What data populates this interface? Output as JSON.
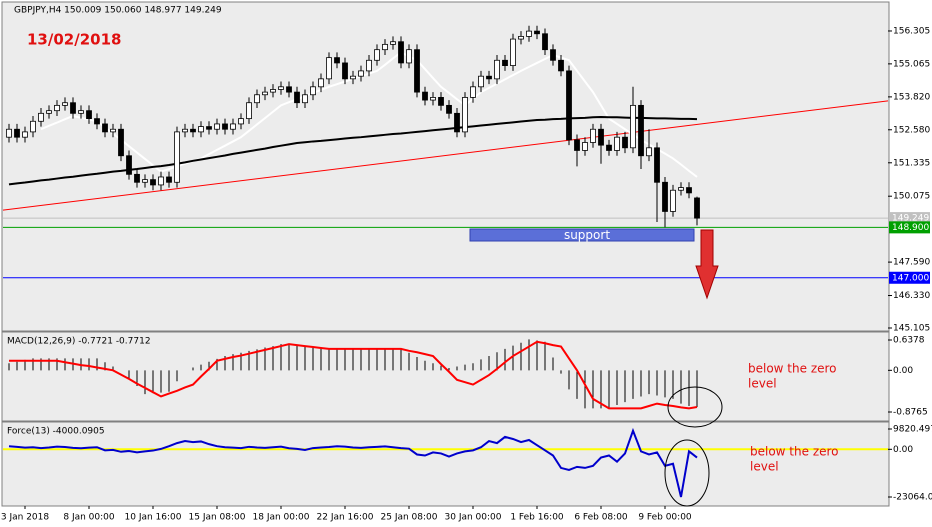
{
  "chart_data": [
    {
      "type": "candlestick",
      "title": "GBPJPY,H4  150.009 150.060 148.977 149.249",
      "annotation": "13/02/2018",
      "support_label": "support",
      "categories": [
        null,
        null,
        "3 Jan 2018",
        null,
        null,
        null,
        null,
        null,
        null,
        null,
        "8 Jan 00:00",
        null,
        null,
        null,
        null,
        null,
        null,
        null,
        "10 Jan 16:00",
        null,
        null,
        null,
        null,
        null,
        null,
        null,
        "15 Jan 08:00",
        null,
        null,
        null,
        null,
        null,
        null,
        null,
        "18 Jan 00:00",
        null,
        null,
        null,
        null,
        null,
        null,
        null,
        "22 Jan 16:00",
        null,
        null,
        null,
        null,
        null,
        null,
        null,
        "25 Jan 08:00",
        null,
        null,
        null,
        null,
        null,
        null,
        null,
        "30 Jan 00:00",
        null,
        null,
        null,
        null,
        null,
        null,
        null,
        "1 Feb 16:00",
        null,
        null,
        null,
        null,
        null,
        null,
        null,
        "6 Feb 08:00",
        null,
        null,
        null,
        null,
        null,
        null,
        null,
        "9 Feb 00:00",
        null,
        null,
        null,
        null
      ],
      "open": [
        152.3,
        152.6,
        152.3,
        152.5,
        152.9,
        153.2,
        153.3,
        153.5,
        153.6,
        153.2,
        153.3,
        153.0,
        152.8,
        152.5,
        152.6,
        151.6,
        150.9,
        150.6,
        150.7,
        150.5,
        150.8,
        150.6,
        152.5,
        152.6,
        152.5,
        152.7,
        152.6,
        152.8,
        152.6,
        152.8,
        153.0,
        153.6,
        153.9,
        154.0,
        154.1,
        154.2,
        154.0,
        153.6,
        153.9,
        154.2,
        154.5,
        155.3,
        155.1,
        154.5,
        154.6,
        154.8,
        155.2,
        155.6,
        155.8,
        155.9,
        155.1,
        155.6,
        154.0,
        153.7,
        153.8,
        153.5,
        153.2,
        152.5,
        153.8,
        154.2,
        154.6,
        154.5,
        155.2,
        155.0,
        156.0,
        156.1,
        156.3,
        156.2,
        155.6,
        155.2,
        154.8,
        152.2,
        151.8,
        152.1,
        152.6,
        152.0,
        151.8,
        152.3,
        151.9,
        153.5,
        151.6,
        151.9,
        150.6,
        149.5,
        150.3,
        150.4,
        150.009
      ],
      "high": [
        152.8,
        152.8,
        152.7,
        153.1,
        153.4,
        153.5,
        153.7,
        153.8,
        153.8,
        153.5,
        153.5,
        153.2,
        153.0,
        152.8,
        152.8,
        151.8,
        151.1,
        150.9,
        150.9,
        151.0,
        151.0,
        152.7,
        152.8,
        152.8,
        152.9,
        152.9,
        153.0,
        153.0,
        153.0,
        153.2,
        153.8,
        154.1,
        154.2,
        154.3,
        154.4,
        154.4,
        154.2,
        154.1,
        154.4,
        154.7,
        155.5,
        155.5,
        155.3,
        154.8,
        155.0,
        155.4,
        155.8,
        156.0,
        156.1,
        156.1,
        155.8,
        155.8,
        154.2,
        154.0,
        154.0,
        153.7,
        153.4,
        154.0,
        154.4,
        154.8,
        154.8,
        155.4,
        155.4,
        156.2,
        156.3,
        156.5,
        156.5,
        156.4,
        155.8,
        155.4,
        155.0,
        152.4,
        152.3,
        152.8,
        152.8,
        152.2,
        152.5,
        152.5,
        154.2,
        153.7,
        152.6,
        152.1,
        150.8,
        150.5,
        150.6,
        150.6,
        150.06
      ],
      "low": [
        152.1,
        152.1,
        152.1,
        152.3,
        152.7,
        153.0,
        153.1,
        153.3,
        153.0,
        153.0,
        152.8,
        152.6,
        152.3,
        152.3,
        151.4,
        150.7,
        150.4,
        150.4,
        150.3,
        150.3,
        150.4,
        150.4,
        152.3,
        152.3,
        152.3,
        152.4,
        152.4,
        152.4,
        152.4,
        152.6,
        152.8,
        153.4,
        153.7,
        153.8,
        153.9,
        153.8,
        153.4,
        153.4,
        153.7,
        154.0,
        154.3,
        154.9,
        154.3,
        154.3,
        154.4,
        154.6,
        155.0,
        155.4,
        155.6,
        154.9,
        154.9,
        153.8,
        153.5,
        153.5,
        153.3,
        153.0,
        152.3,
        152.3,
        153.6,
        154.0,
        154.3,
        154.3,
        154.8,
        154.8,
        155.8,
        155.9,
        156.0,
        155.4,
        155.0,
        154.6,
        152.0,
        151.2,
        151.6,
        151.9,
        151.3,
        151.6,
        151.6,
        151.7,
        151.7,
        151.1,
        151.4,
        149.1,
        148.9,
        149.3,
        150.1,
        150.0,
        148.977
      ],
      "close": [
        152.6,
        152.3,
        152.5,
        152.9,
        153.2,
        153.3,
        153.5,
        153.6,
        153.2,
        153.3,
        153.0,
        152.8,
        152.5,
        152.6,
        151.6,
        150.9,
        150.6,
        150.7,
        150.5,
        150.8,
        150.6,
        152.5,
        152.6,
        152.5,
        152.7,
        152.6,
        152.8,
        152.6,
        152.8,
        153.0,
        153.6,
        153.9,
        154.0,
        154.1,
        154.2,
        154.0,
        153.6,
        153.9,
        154.2,
        154.5,
        155.3,
        155.1,
        154.5,
        154.6,
        154.8,
        155.2,
        155.6,
        155.8,
        155.9,
        155.1,
        155.6,
        154.0,
        153.7,
        153.8,
        153.5,
        153.2,
        152.5,
        153.8,
        154.2,
        154.6,
        154.5,
        155.2,
        155.0,
        156.0,
        156.1,
        156.3,
        156.2,
        155.6,
        155.2,
        154.8,
        152.2,
        151.8,
        152.1,
        152.6,
        152.0,
        151.8,
        152.3,
        151.9,
        153.5,
        151.6,
        151.9,
        150.6,
        149.5,
        150.3,
        150.4,
        150.2,
        149.249
      ],
      "series": [
        {
          "color": "#ffffff",
          "values": [
            null,
            null,
            null,
            null,
            152.6,
            152.73,
            152.85,
            152.98,
            153.1,
            153.03,
            152.97,
            152.9,
            152.67,
            152.43,
            152.2,
            151.96,
            151.72,
            151.48,
            151.24,
            151.0,
            151.1,
            151.2,
            151.3,
            151.4,
            151.5,
            151.66,
            151.82,
            151.98,
            152.14,
            152.3,
            152.54,
            152.78,
            153.02,
            153.26,
            153.5,
            153.62,
            153.73,
            153.85,
            153.97,
            154.08,
            154.2,
            154.3,
            154.4,
            154.5,
            154.6,
            154.7,
            154.8,
            155.03,
            155.27,
            155.5,
            155.35,
            155.2,
            154.87,
            154.53,
            154.2,
            153.97,
            153.73,
            153.5,
            153.75,
            154.0,
            154.16,
            154.32,
            154.48,
            154.64,
            154.8,
            154.95,
            155.1,
            155.25,
            155.4,
            155.3,
            155.2,
            154.8,
            154.4,
            154.0,
            153.5,
            153.0,
            152.8,
            152.6,
            152.4,
            152.2,
            152.03,
            151.85,
            151.68,
            151.5,
            151.27,
            151.03,
            150.8
          ]
        },
        {
          "color": "#000000",
          "values": [
            150.52,
            150.56,
            150.59,
            150.63,
            150.67,
            150.7,
            150.74,
            150.78,
            150.81,
            150.85,
            150.89,
            150.92,
            150.96,
            151.0,
            151.03,
            151.07,
            151.1,
            151.14,
            151.18,
            151.21,
            151.25,
            151.3,
            151.35,
            151.41,
            151.46,
            151.51,
            151.56,
            151.61,
            151.67,
            151.72,
            151.77,
            151.82,
            151.87,
            151.93,
            151.98,
            152.03,
            152.08,
            152.11,
            152.14,
            152.16,
            152.19,
            152.22,
            152.25,
            152.28,
            152.3,
            152.33,
            152.36,
            152.39,
            152.42,
            152.44,
            152.47,
            152.5,
            152.53,
            152.56,
            152.59,
            152.62,
            152.65,
            152.68,
            152.71,
            152.74,
            152.77,
            152.8,
            152.83,
            152.86,
            152.89,
            152.92,
            152.95,
            152.96,
            152.98,
            152.99,
            153.01,
            153.02,
            153.03,
            153.05,
            153.06,
            153.05,
            153.05,
            153.04,
            153.03,
            153.03,
            153.02,
            153.01,
            153.01,
            153.0,
            152.99,
            152.99,
            152.98
          ]
        }
      ],
      "trend_line": {
        "color": "#ff0000",
        "values": [
          149.55,
          153.67
        ]
      },
      "levels": [
        {
          "value": 148.9,
          "label": "148.900",
          "color": "#00a000"
        },
        {
          "value": 147,
          "label": "147.000",
          "color": "#0000ff"
        }
      ],
      "last_price": {
        "value": 149.249,
        "label": "149.249",
        "color": "#c0c0c0"
      },
      "ylim": [
        145.03,
        157.36
      ],
      "yticks": [
        156.305,
        155.065,
        {
          "value": 153.82,
          "label": "153.820"
        },
        {
          "value": 152.58,
          "label": "152.580"
        },
        151.335,
        150.075,
        {
          "value": 147.59,
          "label": "147.590"
        },
        {
          "value": 146.33,
          "label": "146.330"
        },
        145.105
      ]
    },
    {
      "type": "bar",
      "label": "MACD(12,26,9) -0.7721 -0.7712",
      "annotation_lines": [
        "below the zero",
        "level"
      ],
      "series": [
        {
          "type": "bar",
          "color": "#000000",
          "values": [
            0.15,
            0.18,
            0.22,
            0.25,
            0.25,
            0.25,
            0.25,
            0.25,
            0.25,
            0.25,
            0.25,
            0.25,
            0.17,
            0.08,
            0.0,
            -0.17,
            -0.33,
            -0.5,
            -0.48,
            -0.47,
            -0.45,
            -0.23,
            0.0,
            0.06,
            0.12,
            0.18,
            0.24,
            0.3,
            0.34,
            0.37,
            0.41,
            0.44,
            0.48,
            0.51,
            0.55,
            0.53,
            0.52,
            0.5,
            0.49,
            0.48,
            0.47,
            0.46,
            0.45,
            0.45,
            0.45,
            0.45,
            0.45,
            0.45,
            0.45,
            0.45,
            0.37,
            0.28,
            0.2,
            0.15,
            0.1,
            0.05,
            0.08,
            0.12,
            0.15,
            0.23,
            0.3,
            0.38,
            0.45,
            0.52,
            0.58,
            0.65,
            0.63,
            0.6,
            0.27,
            -0.07,
            -0.4,
            -0.6,
            -0.8,
            -0.8,
            -0.8,
            -0.8,
            -0.73,
            -0.67,
            -0.6,
            -0.55,
            -0.5,
            -0.53,
            -0.57,
            -0.6,
            -0.7,
            -0.75,
            -0.7721
          ]
        },
        {
          "type": "line",
          "color": "#ff0000",
          "values": [
            0.2,
            0.2,
            0.2,
            0.2,
            0.2,
            0.2,
            0.2,
            0.17,
            0.14,
            0.11,
            0.09,
            0.06,
            0.03,
            0.0,
            -0.09,
            -0.18,
            -0.28,
            -0.37,
            -0.46,
            -0.55,
            -0.49,
            -0.43,
            -0.36,
            -0.3,
            -0.13,
            0.03,
            0.2,
            0.24,
            0.28,
            0.31,
            0.35,
            0.39,
            0.43,
            0.47,
            0.51,
            0.55,
            0.53,
            0.51,
            0.49,
            0.47,
            0.45,
            0.45,
            0.45,
            0.45,
            0.45,
            0.45,
            0.45,
            0.45,
            0.45,
            0.45,
            0.41,
            0.38,
            0.34,
            0.3,
            0.13,
            -0.03,
            -0.2,
            -0.25,
            -0.3,
            -0.2,
            -0.1,
            0.03,
            0.17,
            0.3,
            0.4,
            0.5,
            0.6,
            0.57,
            0.53,
            0.5,
            0.25,
            0.0,
            -0.3,
            -0.6,
            -0.7,
            -0.8,
            -0.8,
            -0.8,
            -0.8,
            -0.8,
            -0.75,
            -0.7,
            -0.73,
            -0.75,
            -0.78,
            -0.8,
            -0.7712
          ]
        }
      ],
      "ylim": [
        -1.045,
        0.785
      ],
      "yticks": [
        0.6378,
        {
          "value": 0,
          "label": "0.00"
        },
        -0.8765
      ]
    },
    {
      "type": "line",
      "label": "Force(13) -4000.0905",
      "annotation_lines": [
        "below the zero",
        "level"
      ],
      "level_line": {
        "value": 0,
        "color": "#ffff00"
      },
      "series": [
        {
          "type": "line",
          "color": "#0000cc",
          "values": [
            1500,
            1200,
            800,
            1000,
            600,
            900,
            1300,
            1100,
            700,
            500,
            800,
            1000,
            -500,
            -300,
            -1200,
            -800,
            -1500,
            -1000,
            -600,
            200,
            1500,
            3000,
            4000,
            3500,
            3800,
            2500,
            1500,
            1000,
            800,
            600,
            1200,
            900,
            700,
            1000,
            1300,
            500,
            200,
            -300,
            600,
            900,
            1100,
            1500,
            1300,
            900,
            700,
            1000,
            1200,
            1400,
            1000,
            600,
            300,
            -2500,
            -3000,
            -1500,
            -2000,
            -3500,
            -2000,
            -1000,
            -500,
            1000,
            4000,
            3000,
            6000,
            5000,
            3500,
            4500,
            2000,
            -500,
            -3000,
            -9000,
            -10000,
            -8500,
            -9000,
            -8000,
            -4000,
            -3000,
            -6000,
            -2000,
            9000,
            -1000,
            -2500,
            -1500,
            -8000,
            -7000,
            -23064.06,
            -1000,
            -4000.0905
          ]
        }
      ],
      "ylim": [
        -26933,
        12238
      ],
      "yticks": [
        9820.497,
        {
          "value": 0,
          "label": "0.00"
        },
        -23064.06
      ]
    }
  ]
}
